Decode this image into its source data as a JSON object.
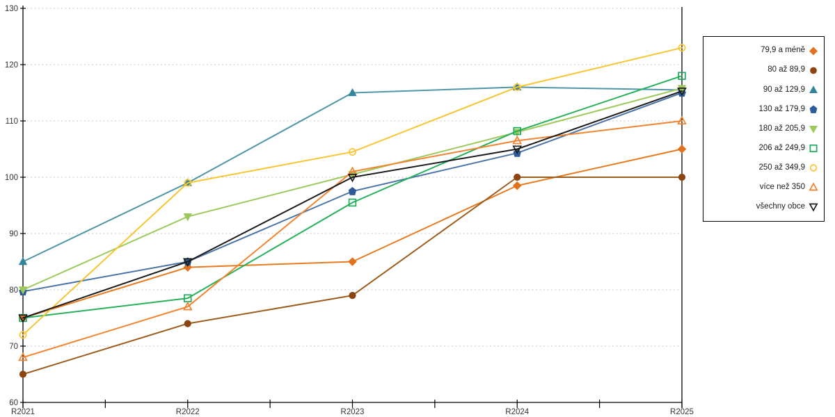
{
  "chart_data": {
    "type": "line",
    "title": "",
    "xlabel": "",
    "ylabel": "",
    "categories": [
      "R2021",
      "R2022",
      "R2023",
      "R2024",
      "R2025"
    ],
    "series": [
      {
        "name": "79,9 a méně",
        "marker": "diamond",
        "style": "filled",
        "color": "#E2711D",
        "line_color": "#E8791F",
        "values": [
          75,
          84,
          85,
          98.5,
          105
        ]
      },
      {
        "name": "80 až 89,9",
        "marker": "circle",
        "style": "filled",
        "color": "#8C4511",
        "line_color": "#9C5C1E",
        "values": [
          65,
          74,
          79,
          100,
          100
        ]
      },
      {
        "name": "90 až 129,9",
        "marker": "triangle-up",
        "style": "filled",
        "color": "#31849C",
        "line_color": "#4F95A6",
        "values": [
          85,
          99,
          115,
          116,
          115.5
        ]
      },
      {
        "name": "130 až 179,9",
        "marker": "pentagon",
        "style": "filled",
        "color": "#2E5B97",
        "line_color": "#4A73A8",
        "values": [
          79.7,
          85,
          97.5,
          104.3,
          115
        ]
      },
      {
        "name": "180 až 205,9",
        "marker": "triangle-down",
        "style": "filled",
        "color": "#9DC95B",
        "line_color": "#9DC95B",
        "values": [
          80,
          93,
          100.5,
          108,
          115.8
        ]
      },
      {
        "name": "206 až 249,9",
        "marker": "square",
        "style": "open",
        "color": "#1EA95C",
        "line_color": "#27B05B",
        "values": [
          75,
          78.5,
          95.5,
          108.2,
          118
        ]
      },
      {
        "name": "250 až 349,9",
        "marker": "circle",
        "style": "open",
        "color": "#FFC431",
        "line_color": "#F7C531",
        "values": [
          72,
          99,
          104.5,
          116,
          123
        ]
      },
      {
        "name": "více než 350",
        "marker": "triangle-up",
        "style": "open",
        "color": "#F0802C",
        "line_color": "#F3842F",
        "values": [
          68,
          77,
          101,
          106.5,
          110
        ]
      },
      {
        "name": "všechny obce",
        "marker": "triangle-down",
        "style": "open",
        "color": "#1A1A1A",
        "line_color": "#1A1A1A",
        "values": [
          75,
          85,
          100,
          105,
          115.3
        ]
      }
    ],
    "ylim": [
      60,
      130
    ],
    "y_ticks": [
      60,
      70,
      80,
      90,
      100,
      110,
      120,
      130
    ],
    "grid": "horizontal-dashed",
    "legend_position": "right"
  },
  "colors": {
    "background": "#FFFFFF",
    "axis": "#000000",
    "grid": "#C6C6C6",
    "tick_label": "#333333",
    "legend_border": "#000000",
    "legend_text": "#1A1A1A"
  }
}
